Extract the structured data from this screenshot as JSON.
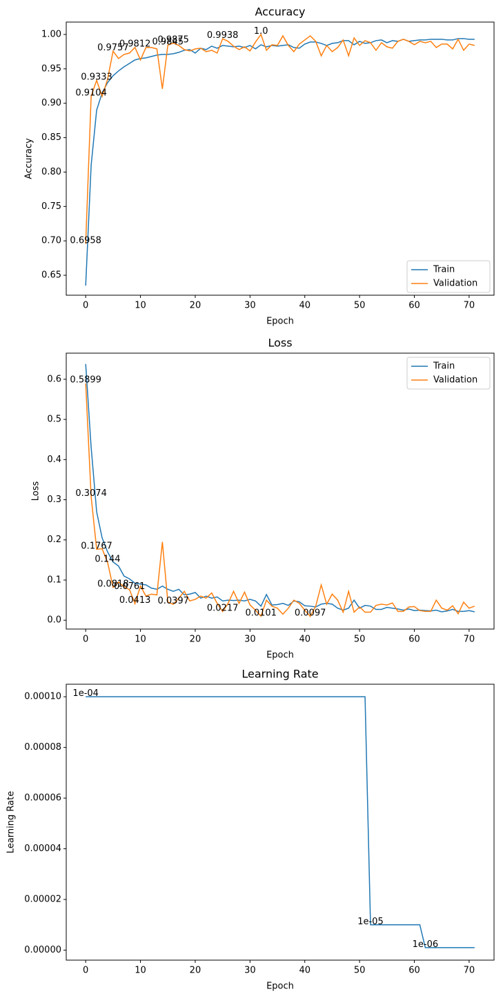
{
  "chart_data": [
    {
      "type": "line",
      "title": "Accuracy",
      "x_label": "Epoch",
      "y_label": "Accuracy",
      "x": [
        0,
        1,
        2,
        3,
        4,
        5,
        6,
        7,
        8,
        9,
        10,
        11,
        12,
        13,
        14,
        15,
        16,
        17,
        18,
        19,
        20,
        21,
        22,
        23,
        24,
        25,
        26,
        27,
        28,
        29,
        30,
        31,
        32,
        33,
        34,
        35,
        36,
        37,
        38,
        39,
        40,
        41,
        42,
        43,
        44,
        45,
        46,
        47,
        48,
        49,
        50,
        51,
        52,
        53,
        54,
        55,
        56,
        57,
        58,
        59,
        60,
        61,
        62,
        63,
        64,
        65,
        66,
        67,
        68,
        69,
        70,
        71
      ],
      "series": [
        {
          "name": "Train",
          "color": "#1f77b4",
          "values": [
            0.635,
            0.81,
            0.89,
            0.915,
            0.93,
            0.94,
            0.947,
            0.953,
            0.958,
            0.963,
            0.965,
            0.966,
            0.968,
            0.97,
            0.971,
            0.971,
            0.972,
            0.974,
            0.977,
            0.978,
            0.973,
            0.98,
            0.978,
            0.983,
            0.98,
            0.984,
            0.983,
            0.982,
            0.983,
            0.981,
            0.984,
            0.979,
            0.985,
            0.982,
            0.984,
            0.983,
            0.984,
            0.985,
            0.981,
            0.98,
            0.986,
            0.989,
            0.989,
            0.987,
            0.984,
            0.987,
            0.988,
            0.991,
            0.991,
            0.985,
            0.99,
            0.987,
            0.988,
            0.991,
            0.992,
            0.988,
            0.991,
            0.99,
            0.993,
            0.99,
            0.991,
            0.992,
            0.992,
            0.993,
            0.993,
            0.993,
            0.992,
            0.992,
            0.994,
            0.994,
            0.993,
            0.993
          ]
        },
        {
          "name": "Validation",
          "color": "#ff7f0e",
          "values": [
            0.6958,
            0.9104,
            0.9333,
            0.91,
            0.935,
            0.9757,
            0.965,
            0.971,
            0.973,
            0.9812,
            0.963,
            0.981,
            0.981,
            0.979,
            0.921,
            0.9845,
            0.9875,
            0.984,
            0.978,
            0.976,
            0.979,
            0.98,
            0.975,
            0.977,
            0.973,
            0.9938,
            0.99,
            0.983,
            0.978,
            0.982,
            0.976,
            0.989,
            1.0,
            0.977,
            0.985,
            0.984,
            0.998,
            0.984,
            0.975,
            0.986,
            0.992,
            0.998,
            0.99,
            0.969,
            0.984,
            0.975,
            0.981,
            0.992,
            0.969,
            0.995,
            0.984,
            0.991,
            0.988,
            0.977,
            0.988,
            0.982,
            0.98,
            0.99,
            0.993,
            0.99,
            0.985,
            0.99,
            0.988,
            0.99,
            0.981,
            0.986,
            0.986,
            0.979,
            0.993,
            0.977,
            0.986,
            0.984
          ],
          "value_labels": [
            "0.6958",
            "0.9104",
            "0.9333",
            null,
            null,
            "0.9757",
            null,
            null,
            null,
            "0.9812",
            null,
            null,
            null,
            null,
            null,
            "0.9845",
            "0.9875",
            null,
            null,
            null,
            null,
            null,
            null,
            null,
            null,
            "0.9938",
            null,
            null,
            null,
            null,
            null,
            null,
            "1.0",
            null,
            null,
            null,
            null,
            null,
            null,
            null,
            null,
            null,
            null,
            null,
            null,
            null,
            null,
            null,
            null,
            null,
            null,
            null,
            null,
            null,
            null,
            null,
            null,
            null,
            null,
            null,
            null,
            null,
            null,
            null,
            null,
            null,
            null,
            null,
            null,
            null,
            null,
            null
          ]
        }
      ],
      "xlim": [
        -3.55,
        74.55
      ],
      "xticks": [
        0,
        10,
        20,
        30,
        40,
        50,
        60,
        70
      ],
      "ylim": [
        0.621,
        1.018
      ],
      "yticks": [
        0.65,
        {
          "value": 0.7,
          "label": "0.70"
        },
        0.75,
        {
          "value": 0.8,
          "label": "0.80"
        },
        0.85,
        {
          "value": 0.9,
          "label": "0.90"
        },
        0.95,
        {
          "value": 1.0,
          "label": "1.00"
        }
      ],
      "legend": "lower right"
    },
    {
      "type": "line",
      "title": "Loss",
      "x_label": "Epoch",
      "y_label": "Loss",
      "x": [
        0,
        1,
        2,
        3,
        4,
        5,
        6,
        7,
        8,
        9,
        10,
        11,
        12,
        13,
        14,
        15,
        16,
        17,
        18,
        19,
        20,
        21,
        22,
        23,
        24,
        25,
        26,
        27,
        28,
        29,
        30,
        31,
        32,
        33,
        34,
        35,
        36,
        37,
        38,
        39,
        40,
        41,
        42,
        43,
        44,
        45,
        46,
        47,
        48,
        49,
        50,
        51,
        52,
        53,
        54,
        55,
        56,
        57,
        58,
        59,
        60,
        61,
        62,
        63,
        64,
        65,
        66,
        67,
        68,
        69,
        70,
        71
      ],
      "series": [
        {
          "name": "Train",
          "color": "#1f77b4",
          "values": [
            0.638,
            0.43,
            0.27,
            0.205,
            0.17,
            0.145,
            0.135,
            0.11,
            0.103,
            0.092,
            0.09,
            0.088,
            0.08,
            0.077,
            0.085,
            0.077,
            0.072,
            0.077,
            0.063,
            0.065,
            0.069,
            0.055,
            0.06,
            0.055,
            0.058,
            0.048,
            0.05,
            0.049,
            0.05,
            0.048,
            0.052,
            0.048,
            0.035,
            0.064,
            0.038,
            0.039,
            0.042,
            0.037,
            0.048,
            0.046,
            0.036,
            0.035,
            0.033,
            0.04,
            0.042,
            0.04,
            0.03,
            0.025,
            0.03,
            0.05,
            0.03,
            0.037,
            0.035,
            0.027,
            0.027,
            0.032,
            0.03,
            0.028,
            0.025,
            0.028,
            0.024,
            0.025,
            0.024,
            0.023,
            0.025,
            0.021,
            0.023,
            0.027,
            0.022,
            0.022,
            0.024,
            0.021
          ]
        },
        {
          "name": "Validation",
          "color": "#ff7f0e",
          "values": [
            0.5899,
            0.3074,
            0.1767,
            0.178,
            0.144,
            0.0818,
            0.095,
            0.083,
            0.0761,
            0.0413,
            0.085,
            0.06,
            0.065,
            0.063,
            0.195,
            0.045,
            0.0397,
            0.055,
            0.072,
            0.048,
            0.052,
            0.06,
            0.055,
            0.068,
            0.042,
            0.0217,
            0.042,
            0.072,
            0.042,
            0.07,
            0.038,
            0.025,
            0.0101,
            0.05,
            0.035,
            0.03,
            0.015,
            0.03,
            0.05,
            0.042,
            0.025,
            0.0097,
            0.035,
            0.088,
            0.04,
            0.065,
            0.05,
            0.02,
            0.072,
            0.02,
            0.033,
            0.02,
            0.02,
            0.037,
            0.04,
            0.038,
            0.043,
            0.022,
            0.022,
            0.033,
            0.034,
            0.024,
            0.022,
            0.022,
            0.05,
            0.03,
            0.025,
            0.036,
            0.016,
            0.045,
            0.03,
            0.035
          ],
          "value_labels": [
            "0.5899",
            "0.3074",
            "0.1767",
            null,
            "0.144",
            "0.0818",
            null,
            null,
            "0.0761",
            "0.0413",
            null,
            null,
            null,
            null,
            null,
            null,
            "0.0397",
            null,
            null,
            null,
            null,
            null,
            null,
            null,
            null,
            "0.0217",
            null,
            null,
            null,
            null,
            null,
            null,
            "0.0101",
            null,
            null,
            null,
            null,
            null,
            null,
            null,
            null,
            "0.0097",
            null,
            null,
            null,
            null,
            null,
            null,
            null,
            null,
            null,
            null,
            null,
            null,
            null,
            null,
            null,
            null,
            null,
            null,
            null,
            null,
            null,
            null,
            null,
            null,
            null,
            null,
            null,
            null,
            null,
            null
          ]
        }
      ],
      "xlim": [
        -3.55,
        74.55
      ],
      "xticks": [
        0,
        10,
        20,
        30,
        40,
        50,
        60,
        70
      ],
      "ylim": [
        -0.022,
        0.665
      ],
      "yticks": [
        {
          "value": 0,
          "label": "0.0"
        },
        0.1,
        0.2,
        0.3,
        0.4,
        0.5,
        0.6
      ],
      "legend": "upper right"
    },
    {
      "type": "line",
      "title": "Learning Rate",
      "x_label": "Epoch",
      "y_label": "Learning Rate",
      "x": [
        0,
        1,
        2,
        3,
        4,
        5,
        6,
        7,
        8,
        9,
        10,
        11,
        12,
        13,
        14,
        15,
        16,
        17,
        18,
        19,
        20,
        21,
        22,
        23,
        24,
        25,
        26,
        27,
        28,
        29,
        30,
        31,
        32,
        33,
        34,
        35,
        36,
        37,
        38,
        39,
        40,
        41,
        42,
        43,
        44,
        45,
        46,
        47,
        48,
        49,
        50,
        51,
        52,
        53,
        54,
        55,
        56,
        57,
        58,
        59,
        60,
        61,
        62,
        63,
        64,
        65,
        66,
        67,
        68,
        69,
        70,
        71
      ],
      "series": [
        {
          "color": "#1f77b4",
          "values": [
            0.0001,
            0.0001,
            0.0001,
            0.0001,
            0.0001,
            0.0001,
            0.0001,
            0.0001,
            0.0001,
            0.0001,
            0.0001,
            0.0001,
            0.0001,
            0.0001,
            0.0001,
            0.0001,
            0.0001,
            0.0001,
            0.0001,
            0.0001,
            0.0001,
            0.0001,
            0.0001,
            0.0001,
            0.0001,
            0.0001,
            0.0001,
            0.0001,
            0.0001,
            0.0001,
            0.0001,
            0.0001,
            0.0001,
            0.0001,
            0.0001,
            0.0001,
            0.0001,
            0.0001,
            0.0001,
            0.0001,
            0.0001,
            0.0001,
            0.0001,
            0.0001,
            0.0001,
            0.0001,
            0.0001,
            0.0001,
            0.0001,
            0.0001,
            0.0001,
            0.0001,
            1e-05,
            1e-05,
            1e-05,
            1e-05,
            1e-05,
            1e-05,
            1e-05,
            1e-05,
            1e-05,
            1e-05,
            1e-06,
            1e-06,
            1e-06,
            1e-06,
            1e-06,
            1e-06,
            1e-06,
            1e-06,
            1e-06,
            1e-06
          ],
          "value_labels": [
            "1e-04",
            null,
            null,
            null,
            null,
            null,
            null,
            null,
            null,
            null,
            null,
            null,
            null,
            null,
            null,
            null,
            null,
            null,
            null,
            null,
            null,
            null,
            null,
            null,
            null,
            null,
            null,
            null,
            null,
            null,
            null,
            null,
            null,
            null,
            null,
            null,
            null,
            null,
            null,
            null,
            null,
            null,
            null,
            null,
            null,
            null,
            null,
            null,
            null,
            null,
            null,
            null,
            "1e-05",
            null,
            null,
            null,
            null,
            null,
            null,
            null,
            null,
            null,
            "1e-06",
            null,
            null,
            null,
            null,
            null,
            null,
            null,
            null,
            null
          ]
        }
      ],
      "xlim": [
        -3.55,
        74.55
      ],
      "xticks": [
        0,
        10,
        20,
        30,
        40,
        50,
        60,
        70
      ],
      "ylim": [
        -3.95e-06,
        0.00010495
      ],
      "yticks": [
        {
          "value": 0,
          "label": "0.00000"
        },
        {
          "value": 2e-05,
          "label": "0.00002"
        },
        {
          "value": 4e-05,
          "label": "0.00004"
        },
        {
          "value": 6e-05,
          "label": "0.00006"
        },
        {
          "value": 8e-05,
          "label": "0.00008"
        },
        {
          "value": 0.0001,
          "label": "0.00010"
        }
      ]
    }
  ]
}
